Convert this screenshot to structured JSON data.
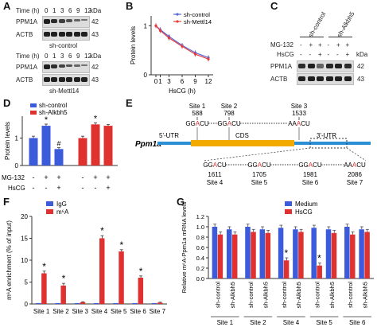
{
  "panels": {
    "A": {
      "letter": "A",
      "time_label": "Time (h)",
      "times": [
        "0",
        "1",
        "3",
        "6",
        "9",
        "12"
      ],
      "kda_label": "kDa",
      "proteins": [
        "PPM1A",
        "ACTB"
      ],
      "kda": [
        "42",
        "43"
      ],
      "caption_top": "sh-control",
      "caption_bottom": "sh-Mettl14"
    },
    "B": {
      "letter": "B",
      "chart_data": {
        "type": "line",
        "xlabel": "HsCG (h)",
        "ylabel": "Protein levels",
        "x_ticks": [
          "0",
          "1",
          "3",
          "6",
          "9",
          "12"
        ],
        "y_ticks": [
          "0",
          "1"
        ],
        "ylim": [
          0,
          1.2
        ],
        "series": [
          {
            "name": "sh-control",
            "color": "#5a67d8",
            "values": [
              1.0,
              0.92,
              0.78,
              0.6,
              0.45,
              0.35
            ]
          },
          {
            "name": "sh-Mettl14",
            "color": "#e53e3e",
            "values": [
              1.0,
              0.9,
              0.75,
              0.58,
              0.42,
              0.32
            ]
          }
        ]
      }
    },
    "C": {
      "letter": "C",
      "col_labels": [
        "sh-control",
        "sh-Alkbh5"
      ],
      "mg_label": "MG-132",
      "hscg_label": "HsCG",
      "mg_signs": [
        "-",
        "+",
        "+",
        "-",
        "+",
        "+"
      ],
      "hscg_signs": [
        "-",
        "-",
        "+",
        "-",
        "-",
        "+"
      ],
      "kda_label": "kDa",
      "proteins": [
        "PPM1A",
        "ACTB"
      ],
      "kda": [
        "42",
        "43"
      ]
    },
    "D": {
      "letter": "D",
      "chart_data": {
        "type": "bar",
        "ylabel": "Protein levels",
        "y_ticks": [
          "0",
          "1"
        ],
        "ylim": [
          0,
          1.8
        ],
        "values": [
          1.0,
          1.45,
          0.6,
          1.0,
          1.5,
          1.45
        ],
        "errors": [
          0.07,
          0.06,
          0.05,
          0.07,
          0.06,
          0.05
        ],
        "colors": [
          "#3b5bdb",
          "#3b5bdb",
          "#3b5bdb",
          "#e03131",
          "#e03131",
          "#e03131"
        ],
        "marks": [
          "",
          "*",
          "#",
          "",
          "*",
          ""
        ],
        "legend": [
          {
            "name": "sh-control",
            "color": "#3b5bdb"
          },
          {
            "name": "sh-Alkbh5",
            "color": "#e03131"
          }
        ],
        "mg_label": "MG-132",
        "hscg_label": "HsCG",
        "mg_signs": [
          "-",
          "+",
          "+",
          "-",
          "+",
          "+"
        ],
        "hscg_signs": [
          "-",
          "-",
          "+",
          "-",
          "-",
          "+"
        ]
      }
    },
    "E": {
      "letter": "E",
      "gene": "Ppm1a",
      "utr5": "5'-UTR",
      "cds": "CDS",
      "utr3": "3'-UTR",
      "top_sites": [
        {
          "name": "Site 1",
          "pos": "588"
        },
        {
          "name": "Site 2",
          "pos": "798"
        },
        {
          "name": "Site 3",
          "pos": "1533"
        }
      ],
      "bottom_sites": [
        {
          "pos": "1611",
          "name": "Site 4"
        },
        {
          "pos": "1705",
          "name": "Site 5"
        },
        {
          "pos": "1981",
          "name": "Site 6"
        },
        {
          "pos": "2086",
          "name": "Site 7"
        }
      ],
      "motifs": {
        "ggacu": [
          "GG",
          "A",
          "CU"
        ],
        "aaacu": [
          "AA",
          "A",
          "CU"
        ]
      }
    },
    "F": {
      "letter": "F",
      "chart_data": {
        "type": "bar",
        "ylabel": "m⁶A enrichment (% of input)",
        "categories": [
          "Site 1",
          "Site 2",
          "Site 3",
          "Site 4",
          "Site 5",
          "Site 6",
          "Site 7"
        ],
        "y_ticks": [
          "0",
          "5",
          "10",
          "15",
          "20"
        ],
        "ylim": [
          0,
          20
        ],
        "series": [
          {
            "name": "IgG",
            "color": "#3b5bdb",
            "values": [
              0.2,
              0.2,
              0.2,
              0.2,
              0.2,
              0.2,
              0.2
            ]
          },
          {
            "name": "m⁶A",
            "color": "#e03131",
            "values": [
              7.0,
              4.2,
              0.4,
              15.0,
              12.0,
              6.0,
              0.3
            ]
          }
        ],
        "errors": [
          0.5,
          0.5,
          0.1,
          0.6,
          0.4,
          0.4,
          0.1
        ],
        "marks": [
          "*",
          "*",
          "",
          "*",
          "*",
          "*",
          ""
        ]
      }
    },
    "G": {
      "letter": "G",
      "chart_data": {
        "type": "bar",
        "ylabel": "Relative m⁶A-Ppm1a mRNA levels",
        "y_ticks": [
          "0.0",
          "0.2",
          "0.4",
          "0.6",
          "0.8",
          "1.0",
          "1.2"
        ],
        "ylim": [
          0,
          1.2
        ],
        "group_labels": [
          "Site 1",
          "Site 2",
          "Site 4",
          "Site 5",
          "Site 6"
        ],
        "sub_labels": [
          "sh-control",
          "sh-Alkbh5"
        ],
        "series": [
          {
            "name": "Medium",
            "color": "#3b5bdb"
          },
          {
            "name": "HsCG",
            "color": "#e03131"
          }
        ],
        "values": [
          [
            [
              1.0,
              0.85
            ],
            [
              0.95,
              0.85
            ]
          ],
          [
            [
              1.0,
              0.9
            ],
            [
              0.95,
              0.88
            ]
          ],
          [
            [
              0.98,
              0.35
            ],
            [
              0.95,
              0.9
            ]
          ],
          [
            [
              0.98,
              0.25
            ],
            [
              0.95,
              0.88
            ]
          ],
          [
            [
              1.0,
              0.85
            ],
            [
              0.95,
              0.9
            ]
          ]
        ],
        "marks": [
          [
            "",
            ""
          ],
          [
            "",
            ""
          ],
          [
            "*",
            ""
          ],
          [
            "*",
            ""
          ],
          [
            "",
            ""
          ]
        ]
      }
    }
  }
}
